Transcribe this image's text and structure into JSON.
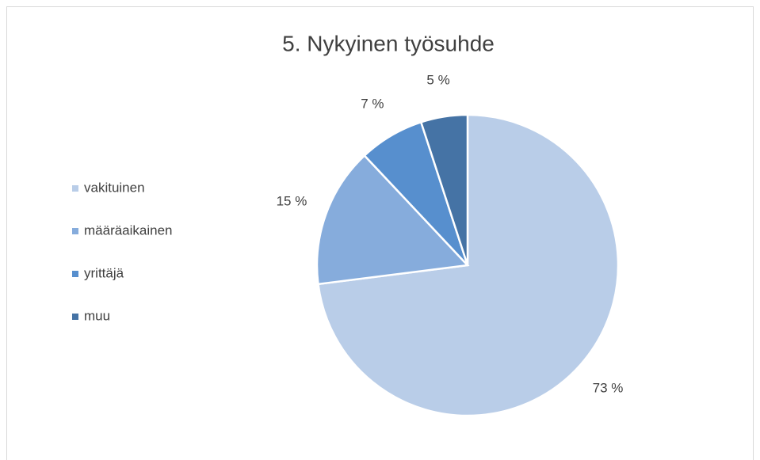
{
  "chart_data": {
    "type": "pie",
    "title": "5. Nykyinen työsuhde",
    "categories": [
      "vakituinen",
      "määräaikainen",
      "yrittäjä",
      "muu"
    ],
    "values": [
      73,
      15,
      7,
      5
    ],
    "value_labels": [
      "73 %",
      "15 %",
      "7 %",
      "5 %"
    ],
    "colors": [
      "#b9cde8",
      "#86acdc",
      "#578fce",
      "#4573a5"
    ],
    "legend": "left"
  }
}
